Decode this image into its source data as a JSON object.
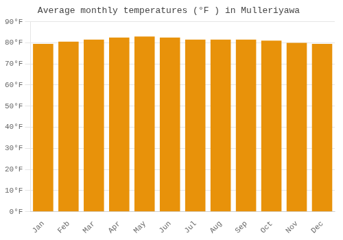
{
  "chart_data": {
    "type": "bar",
    "title": "Average monthly temperatures (°F ) in Mulleriyawa",
    "categories": [
      "Jan",
      "Feb",
      "Mar",
      "Apr",
      "May",
      "Jun",
      "Jul",
      "Aug",
      "Sep",
      "Oct",
      "Nov",
      "Dec"
    ],
    "values": [
      79.5,
      80.5,
      81.5,
      82.5,
      83.0,
      82.5,
      81.5,
      81.5,
      81.5,
      81.0,
      80.0,
      79.5
    ],
    "color": "#E8920A",
    "ylim": [
      0,
      90
    ],
    "yticks": [
      {
        "value": 0,
        "label": "0°F"
      },
      {
        "value": 10,
        "label": "10°F"
      },
      {
        "value": 20,
        "label": "20°F"
      },
      {
        "value": 30,
        "label": "30°F"
      },
      {
        "value": 40,
        "label": "40°F"
      },
      {
        "value": 50,
        "label": "50°F"
      },
      {
        "value": 60,
        "label": "60°F"
      },
      {
        "value": 70,
        "label": "70°F"
      },
      {
        "value": 80,
        "label": "80°F"
      },
      {
        "value": 90,
        "label": "90°F"
      }
    ],
    "grid": true
  }
}
